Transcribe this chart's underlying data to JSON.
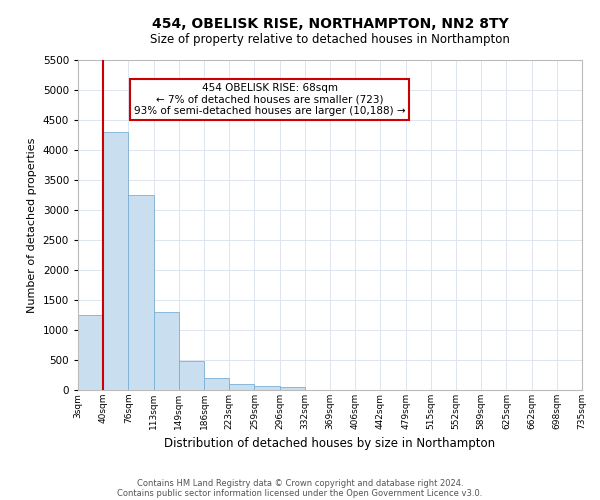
{
  "title": "454, OBELISK RISE, NORTHAMPTON, NN2 8TY",
  "subtitle": "Size of property relative to detached houses in Northampton",
  "xlabel": "Distribution of detached houses by size in Northampton",
  "ylabel": "Number of detached properties",
  "footer_line1": "Contains HM Land Registry data © Crown copyright and database right 2024.",
  "footer_line2": "Contains public sector information licensed under the Open Government Licence v3.0.",
  "annotation_title": "454 OBELISK RISE: 68sqm",
  "annotation_line1": "← 7% of detached houses are smaller (723)",
  "annotation_line2": "93% of semi-detached houses are larger (10,188) →",
  "property_size_bin": 1,
  "bar_color": "#c9dff0",
  "bar_edge_color": "#7aafd4",
  "marker_color": "#cc0000",
  "annotation_box_color": "#cc0000",
  "tick_labels": [
    "3sqm",
    "40sqm",
    "76sqm",
    "113sqm",
    "149sqm",
    "186sqm",
    "223sqm",
    "259sqm",
    "296sqm",
    "332sqm",
    "369sqm",
    "406sqm",
    "442sqm",
    "479sqm",
    "515sqm",
    "552sqm",
    "589sqm",
    "625sqm",
    "662sqm",
    "698sqm",
    "735sqm"
  ],
  "bar_heights": [
    1250,
    4300,
    3250,
    1300,
    490,
    200,
    100,
    75,
    55,
    0,
    0,
    0,
    0,
    0,
    0,
    0,
    0,
    0,
    0,
    0
  ],
  "ylim": [
    0,
    5500
  ],
  "yticks": [
    0,
    500,
    1000,
    1500,
    2000,
    2500,
    3000,
    3500,
    4000,
    4500,
    5000,
    5500
  ],
  "background_color": "#ffffff",
  "grid_color": "#dde5f0"
}
